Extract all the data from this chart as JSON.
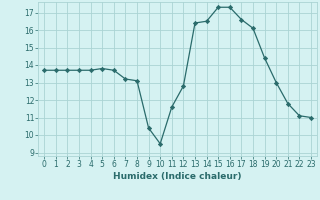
{
  "x": [
    0,
    1,
    2,
    3,
    4,
    5,
    6,
    7,
    8,
    9,
    10,
    11,
    12,
    13,
    14,
    15,
    16,
    17,
    18,
    19,
    20,
    21,
    22,
    23
  ],
  "y": [
    13.7,
    13.7,
    13.7,
    13.7,
    13.7,
    13.8,
    13.7,
    13.2,
    13.1,
    10.4,
    9.5,
    11.6,
    12.8,
    16.4,
    16.5,
    17.3,
    17.3,
    16.6,
    16.1,
    14.4,
    13.0,
    11.8,
    11.1,
    11.0
  ],
  "xlabel": "Humidex (Indice chaleur)",
  "xlim": [
    -0.5,
    23.5
  ],
  "ylim": [
    8.8,
    17.6
  ],
  "yticks": [
    9,
    10,
    11,
    12,
    13,
    14,
    15,
    16,
    17
  ],
  "xticks": [
    0,
    1,
    2,
    3,
    4,
    5,
    6,
    7,
    8,
    9,
    10,
    11,
    12,
    13,
    14,
    15,
    16,
    17,
    18,
    19,
    20,
    21,
    22,
    23
  ],
  "line_color": "#2a6b6b",
  "marker": "D",
  "marker_size": 2.2,
  "bg_color": "#d5f2f2",
  "grid_color": "#aad4d4",
  "tick_label_color": "#2a6b6b",
  "xlabel_color": "#2a6b6b",
  "tick_fontsize": 5.5,
  "xlabel_fontsize": 6.5,
  "line_width": 0.9
}
